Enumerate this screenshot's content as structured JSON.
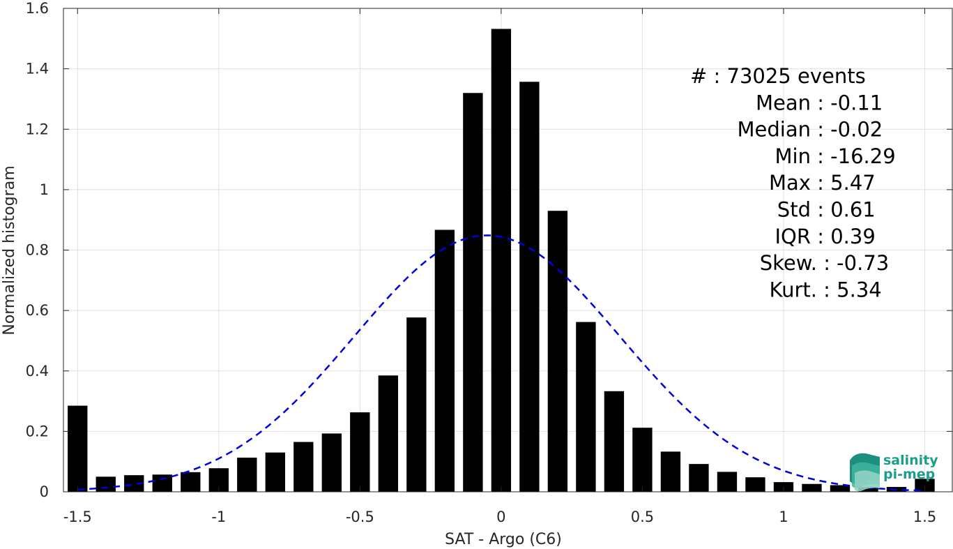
{
  "chart_data": {
    "type": "bar",
    "title": "",
    "xlabel": "SAT - Argo (C6)",
    "ylabel": "Normalized histogram",
    "xlim": [
      -1.55,
      1.6
    ],
    "ylim": [
      0,
      1.6
    ],
    "xticks": [
      -1.5,
      -1,
      -0.5,
      0,
      0.5,
      1,
      1.5
    ],
    "xtick_labels": [
      "-1.5",
      "-1",
      "-0.5",
      "0",
      "0.5",
      "1",
      "1.5"
    ],
    "yticks": [
      0,
      0.2,
      0.4,
      0.6,
      0.8,
      1,
      1.2,
      1.4,
      1.6
    ],
    "ytick_labels": [
      "0",
      "0.2",
      "0.4",
      "0.6",
      "0.8",
      "1",
      "1.2",
      "1.4",
      "1.6"
    ],
    "grid": true,
    "bar_width": 0.07,
    "bar_color": "#000000",
    "bins_x": [
      -1.5,
      -1.4,
      -1.3,
      -1.2,
      -1.1,
      -1.0,
      -0.9,
      -0.8,
      -0.7,
      -0.6,
      -0.5,
      -0.4,
      -0.3,
      -0.2,
      -0.1,
      0.0,
      0.1,
      0.2,
      0.3,
      0.4,
      0.5,
      0.6,
      0.7,
      0.8,
      0.9,
      1.0,
      1.1,
      1.2,
      1.3,
      1.4,
      1.5
    ],
    "values": [
      0.285,
      0.05,
      0.055,
      0.057,
      0.065,
      0.078,
      0.113,
      0.13,
      0.165,
      0.193,
      0.263,
      0.385,
      0.577,
      0.867,
      1.32,
      1.532,
      1.357,
      0.93,
      0.562,
      0.333,
      0.212,
      0.133,
      0.092,
      0.066,
      0.048,
      0.032,
      0.026,
      0.022,
      0.015,
      0.016,
      0.043
    ],
    "fit": {
      "type": "gaussian",
      "mean": -0.05,
      "std": 0.47,
      "xrange": [
        -1.5,
        1.5
      ],
      "color": "#0000e0",
      "style": "dashed"
    },
    "annotations": [
      {
        "label": "#  : 73025 events"
      },
      {
        "label": "Mean : -0.11"
      },
      {
        "label": "Median : -0.02"
      },
      {
        "label": "Min : -16.29"
      },
      {
        "label": "Max : 5.47"
      },
      {
        "label": "Std : 0.61"
      },
      {
        "label": "IQR : 0.39"
      },
      {
        "label": "Skew. : -0.73"
      },
      {
        "label": "Kurt. : 5.34"
      }
    ]
  },
  "logo": {
    "line1": "salinity",
    "line2": "pi-mep",
    "color": "#1a9e8a"
  }
}
